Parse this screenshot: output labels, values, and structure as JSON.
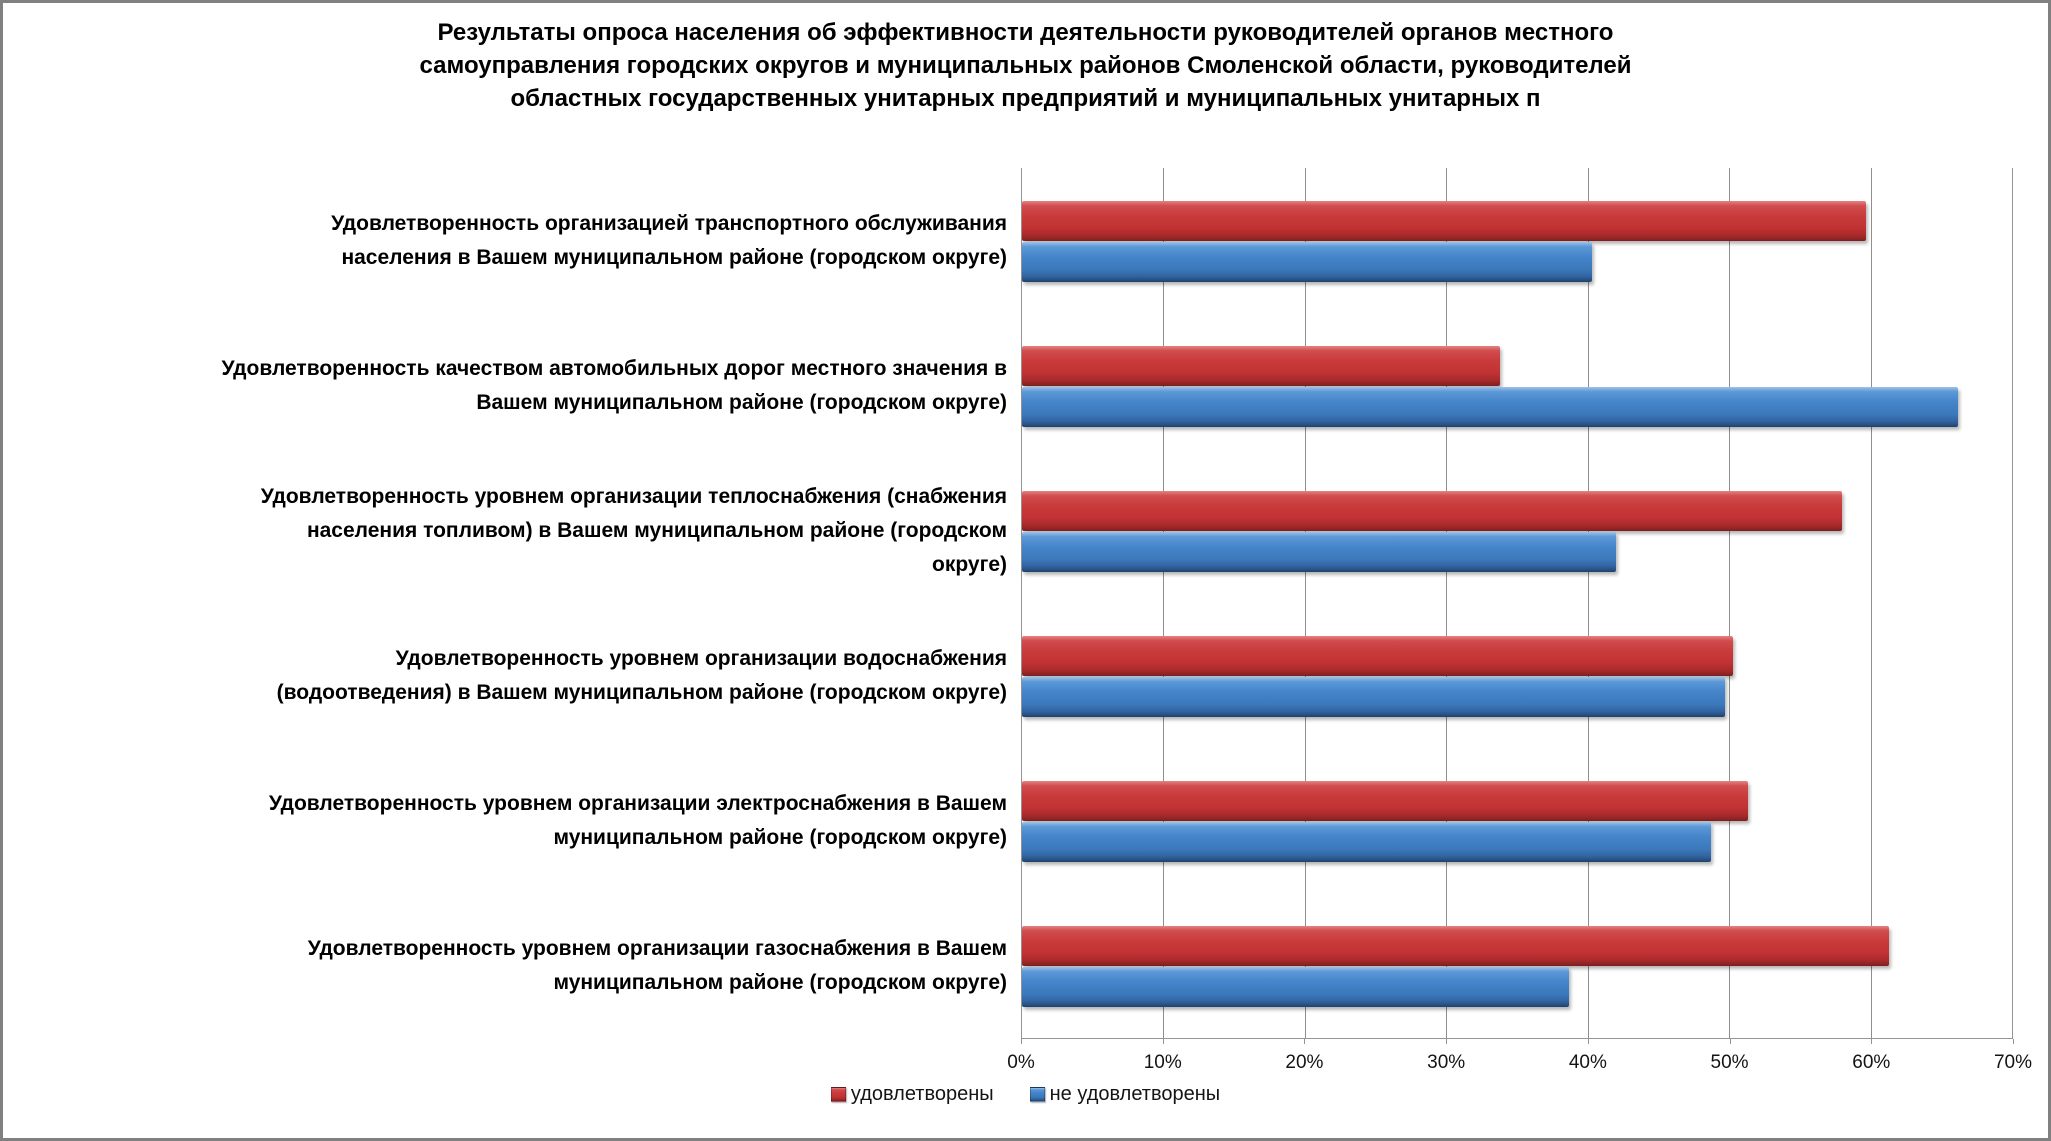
{
  "title": {
    "lines": [
      "Результаты опроса населения об эффективности деятельности руководителей органов местного",
      "самоуправления городских округов и муниципальных районов Смоленской области, руководителей",
      "областных государственных унитарных предприятий и муниципальных унитарных п"
    ]
  },
  "chart_data": {
    "type": "bar",
    "orientation": "horizontal",
    "categories": [
      "Удовлетворенность организацией транспортного обслуживания\nнаселения в Вашем муниципальном районе (городском округе)",
      "Удовлетворенность качеством автомобильных дорог местного значения в\nВашем муниципальном районе (городском округе)",
      "Удовлетворенность уровнем организации теплоснабжения (снабжения\nнаселения топливом) в Вашем муниципальном районе (городском\nокруге)",
      "Удовлетворенность уровнем организации водоснабжения\n(водоотведения) в Вашем муниципальном районе (городском округе)",
      "Удовлетворенность уровнем организации электроснабжения в Вашем\nмуниципальном районе (городском округе)",
      "Удовлетворенность уровнем организации газоснабжения в Вашем\nмуниципальном районе (городском округе)"
    ],
    "series": [
      {
        "name": "удовлетворены",
        "color": "#c9393b",
        "values": [
          59.7,
          33.8,
          58.0,
          50.3,
          51.3,
          61.3
        ]
      },
      {
        "name": "не удовлетворены",
        "color": "#3f80c5",
        "values": [
          40.3,
          66.2,
          42.0,
          49.7,
          48.7,
          38.7
        ]
      }
    ],
    "x_axis": {
      "min": 0,
      "max": 70,
      "unit": "%",
      "tick_labels": [
        "0%",
        "10%",
        "20%",
        "30%",
        "40%",
        "50%",
        "60%",
        "70%"
      ]
    },
    "grid": true,
    "legend_position": "bottom"
  }
}
